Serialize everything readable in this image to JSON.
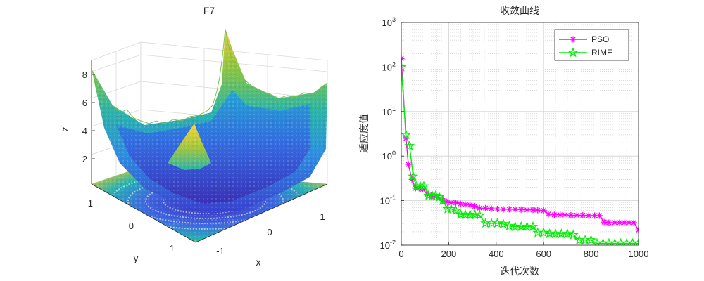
{
  "chart_data": [
    {
      "type": "surface",
      "title": "F7",
      "xlabel": "x",
      "ylabel": "y",
      "zlabel": "z",
      "xticks": [
        "-1",
        "0",
        "1"
      ],
      "yticks": [
        "-1",
        "0",
        "1"
      ],
      "zticks": [
        "2",
        "4",
        "6",
        "8"
      ],
      "zlim": [
        0,
        9
      ],
      "colormap": "parula",
      "contour_on_floor": true,
      "grid": true
    },
    {
      "type": "line",
      "title": "收敛曲线",
      "xlabel": "迭代次数",
      "ylabel": "适应度值",
      "yscale": "log",
      "xlim": [
        0,
        1000
      ],
      "ylim": [
        0.01,
        1000
      ],
      "xticks": [
        "0",
        "200",
        "400",
        "600",
        "800",
        "1000"
      ],
      "yticks_exp": [
        "-2",
        "-1",
        "0",
        "1",
        "2",
        "3"
      ],
      "ytick_base": "10",
      "grid": true,
      "minor_grid": true,
      "legend_position": "top-right",
      "series": [
        {
          "name": "PSO",
          "color": "#ff00ff",
          "marker": "asterisk",
          "x": [
            0,
            20,
            30,
            45,
            60,
            75,
            90,
            110,
            125,
            140,
            155,
            175,
            190,
            210,
            230,
            250,
            270,
            290,
            310,
            330,
            355,
            380,
            405,
            430,
            455,
            480,
            505,
            530,
            555,
            575,
            600,
            620,
            645,
            670,
            690,
            715,
            740,
            765,
            790,
            815,
            835,
            855,
            875,
            900,
            920,
            940,
            960,
            980,
            1000
          ],
          "y": [
            155,
            2.5,
            0.65,
            0.3,
            0.19,
            0.19,
            0.18,
            0.14,
            0.13,
            0.125,
            0.12,
            0.1,
            0.095,
            0.09,
            0.09,
            0.085,
            0.082,
            0.08,
            0.075,
            0.068,
            0.068,
            0.066,
            0.065,
            0.064,
            0.064,
            0.064,
            0.063,
            0.062,
            0.062,
            0.061,
            0.06,
            0.05,
            0.048,
            0.048,
            0.048,
            0.047,
            0.047,
            0.047,
            0.046,
            0.046,
            0.046,
            0.033,
            0.032,
            0.032,
            0.032,
            0.032,
            0.032,
            0.032,
            0.022
          ]
        },
        {
          "name": "RIME",
          "color": "#00ee00",
          "marker": "pentagram",
          "x": [
            0,
            20,
            35,
            50,
            65,
            80,
            95,
            115,
            130,
            145,
            160,
            175,
            195,
            210,
            230,
            250,
            270,
            290,
            310,
            330,
            355,
            380,
            405,
            430,
            455,
            480,
            505,
            530,
            555,
            575,
            600,
            625,
            650,
            675,
            700,
            725,
            750,
            775,
            800,
            825,
            850,
            875,
            900,
            925,
            950,
            975,
            1000
          ],
          "y": [
            100,
            3,
            1.7,
            0.35,
            0.21,
            0.21,
            0.21,
            0.13,
            0.13,
            0.13,
            0.12,
            0.1,
            0.065,
            0.065,
            0.06,
            0.049,
            0.048,
            0.048,
            0.048,
            0.047,
            0.031,
            0.031,
            0.031,
            0.03,
            0.027,
            0.026,
            0.026,
            0.026,
            0.026,
            0.019,
            0.019,
            0.018,
            0.018,
            0.018,
            0.018,
            0.017,
            0.013,
            0.013,
            0.013,
            0.011,
            0.011,
            0.011,
            0.011,
            0.011,
            0.011,
            0.011,
            0.011
          ]
        }
      ]
    }
  ]
}
